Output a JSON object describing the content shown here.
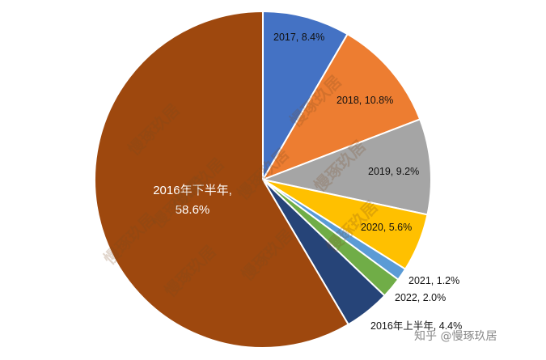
{
  "chart_data": {
    "type": "pie",
    "title": "",
    "slices": [
      {
        "label": "2017, 8.4%",
        "value": 8.4,
        "color": "#4472C4"
      },
      {
        "label": "2018, 10.8%",
        "value": 10.8,
        "color": "#ED7D31"
      },
      {
        "label": "2019, 9.2%",
        "value": 9.2,
        "color": "#A5A5A5"
      },
      {
        "label": "2020, 5.6%",
        "value": 5.6,
        "color": "#FFC000"
      },
      {
        "label": "2021, 1.2%",
        "value": 1.2,
        "color": "#5B9BD5"
      },
      {
        "label": "2022, 2.0%",
        "value": 2.0,
        "color": "#70AD47"
      },
      {
        "label": "2016年上半年, 4.4%",
        "value": 4.4,
        "color": "#264478"
      },
      {
        "label_lines": [
          "2016年下半年,",
          "58.6%"
        ],
        "value": 58.6,
        "color": "#9E480E"
      }
    ],
    "start_angle": "12 o'clock",
    "direction": "clockwise"
  },
  "watermark": {
    "text": "慢琢玖居",
    "credit": "知乎 @慢琢玖居"
  }
}
